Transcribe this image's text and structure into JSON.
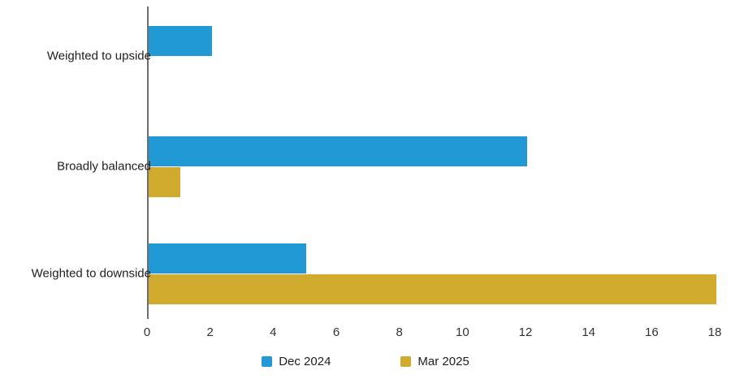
{
  "chart_data": {
    "type": "bar",
    "orientation": "horizontal",
    "title": "",
    "xlabel": "",
    "ylabel": "",
    "categories": [
      "Weighted to upside",
      "Broadly balanced",
      "Weighted to downside"
    ],
    "series": [
      {
        "name": "Dec 2024",
        "color": "#2199d4",
        "values": [
          2,
          12,
          5
        ]
      },
      {
        "name": "Mar 2025",
        "color": "#d1ab2d",
        "values": [
          0,
          1,
          18
        ]
      }
    ],
    "xlim": [
      0,
      18
    ],
    "xticks": [
      0,
      2,
      4,
      6,
      8,
      10,
      12,
      14,
      16,
      18
    ],
    "grid": false,
    "legend_position": "bottom-center"
  },
  "colors": {
    "axis_line": "#6e6e6e",
    "tick_text": "#333333",
    "label_text": "#212121",
    "background": "#ffffff"
  }
}
